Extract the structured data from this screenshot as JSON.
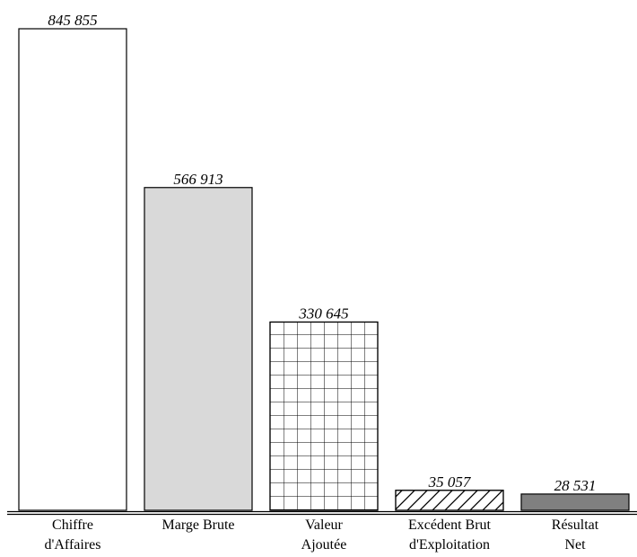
{
  "chart_data": {
    "type": "bar",
    "categories": [
      [
        "Chiffre",
        "d'Affaires"
      ],
      [
        "Marge Brute"
      ],
      [
        "Valeur",
        "Ajoutée"
      ],
      [
        "Excédent Brut",
        "d'Exploitation"
      ],
      [
        "Résultat",
        "Net"
      ]
    ],
    "values": [
      845855,
      566913,
      330645,
      35057,
      28531
    ],
    "value_labels": [
      "845 855",
      "566 913",
      "330 645",
      "35 057",
      "28 531"
    ],
    "title": "",
    "xlabel": "",
    "ylabel": "",
    "ylim": [
      0,
      845855
    ],
    "grid": false,
    "legend": "none",
    "bar_styles": [
      {
        "fill": "#ffffff",
        "pattern": "none"
      },
      {
        "fill": "#d9d9d9",
        "pattern": "none"
      },
      {
        "fill": "#ffffff",
        "pattern": "grid"
      },
      {
        "fill": "#ffffff",
        "pattern": "diagonal-hatch"
      },
      {
        "fill": "#808080",
        "pattern": "none"
      }
    ],
    "colors": {
      "stroke": "#000000",
      "text": "#000000"
    }
  }
}
